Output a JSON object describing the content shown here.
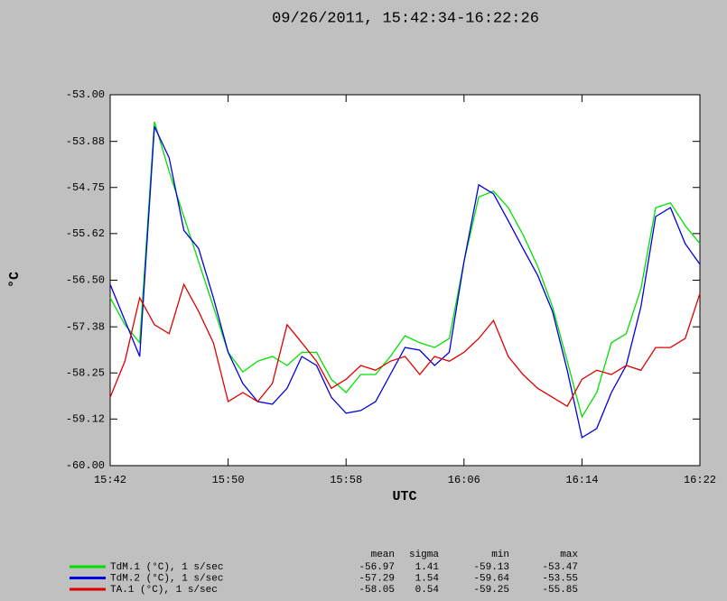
{
  "chart_data": {
    "type": "line",
    "title": "09/26/2011, 15:42:34-16:22:26",
    "x_label": "UTC",
    "y_label": "°C",
    "x": [
      "15:42",
      "15:43",
      "15:44",
      "15:45",
      "15:46",
      "15:47",
      "15:48",
      "15:49",
      "15:50",
      "15:51",
      "15:52",
      "15:53",
      "15:54",
      "15:55",
      "15:56",
      "15:57",
      "15:58",
      "15:59",
      "16:00",
      "16:01",
      "16:02",
      "16:03",
      "16:04",
      "16:05",
      "16:06",
      "16:07",
      "16:08",
      "16:09",
      "16:10",
      "16:11",
      "16:12",
      "16:13",
      "16:14",
      "16:15",
      "16:16",
      "16:17",
      "16:18",
      "16:19",
      "16:20",
      "16:21",
      "16:22"
    ],
    "xlim": [
      "15:42",
      "16:22"
    ],
    "xticks": [
      "15:42",
      "15:50",
      "15:58",
      "16:06",
      "16:14",
      "16:22"
    ],
    "ylim": [
      -60,
      -53
    ],
    "yticks": [
      {
        "value": -53,
        "label": "-53.00"
      },
      {
        "value": -53.88,
        "label": "-53.88"
      },
      {
        "value": -54.75,
        "label": "-54.75"
      },
      {
        "value": -55.62,
        "label": "-55.62"
      },
      {
        "value": -56.5,
        "label": "-56.50"
      },
      {
        "value": -57.38,
        "label": "-57.38"
      },
      {
        "value": -58.25,
        "label": "-58.25"
      },
      {
        "value": -59.12,
        "label": "-59.12"
      },
      {
        "value": -60,
        "label": "-60.00"
      }
    ],
    "series": [
      {
        "name": "TdM.1 (°C), 1 s/sec",
        "color": "#00e000",
        "values": [
          -56.83,
          -57.34,
          -57.68,
          -53.51,
          -54.45,
          -55.3,
          -56.15,
          -57.0,
          -57.86,
          -58.23,
          -58.03,
          -57.94,
          -58.11,
          -57.86,
          -57.86,
          -58.37,
          -58.62,
          -58.28,
          -58.28,
          -57.94,
          -57.55,
          -57.68,
          -57.77,
          -57.6,
          -56.15,
          -54.93,
          -54.82,
          -55.13,
          -55.64,
          -56.24,
          -57.0,
          -58.03,
          -59.08,
          -58.62,
          -57.68,
          -57.51,
          -56.66,
          -55.13,
          -55.04,
          -55.47,
          -55.81
        ]
      },
      {
        "name": "TdM.2 (°C), 1 s/sec",
        "color": "#0000e0",
        "values": [
          -56.58,
          -57.26,
          -57.94,
          -53.6,
          -54.19,
          -55.56,
          -55.9,
          -56.83,
          -57.86,
          -58.45,
          -58.79,
          -58.84,
          -58.54,
          -57.94,
          -58.11,
          -58.71,
          -59.01,
          -58.96,
          -58.79,
          -58.28,
          -57.77,
          -57.82,
          -58.11,
          -57.86,
          -56.15,
          -54.7,
          -54.87,
          -55.38,
          -55.9,
          -56.41,
          -57.09,
          -58.2,
          -59.47,
          -59.3,
          -58.62,
          -58.11,
          -57.0,
          -55.3,
          -55.13,
          -55.81,
          -56.2
        ]
      },
      {
        "name": "TA.1 (°C), 1 s/sec",
        "color": "#e00000",
        "values": [
          -58.71,
          -58.03,
          -56.83,
          -57.34,
          -57.51,
          -56.58,
          -57.09,
          -57.68,
          -58.79,
          -58.62,
          -58.79,
          -58.45,
          -57.34,
          -57.68,
          -58.03,
          -58.54,
          -58.37,
          -58.11,
          -58.2,
          -58.03,
          -57.94,
          -58.28,
          -57.94,
          -58.03,
          -57.86,
          -57.6,
          -57.26,
          -57.94,
          -58.28,
          -58.54,
          -58.71,
          -58.88,
          -58.37,
          -58.2,
          -58.28,
          -58.11,
          -58.2,
          -57.77,
          -57.77,
          -57.6,
          -56.75
        ]
      }
    ],
    "stats": {
      "columns": [
        "mean",
        "sigma",
        "min",
        "max"
      ],
      "rows": [
        [
          "-56.97",
          "1.41",
          "-59.13",
          "-53.47"
        ],
        [
          "-57.29",
          "1.54",
          "-59.64",
          "-53.55"
        ],
        [
          "-58.05",
          "0.54",
          "-59.25",
          "-55.85"
        ]
      ]
    }
  }
}
